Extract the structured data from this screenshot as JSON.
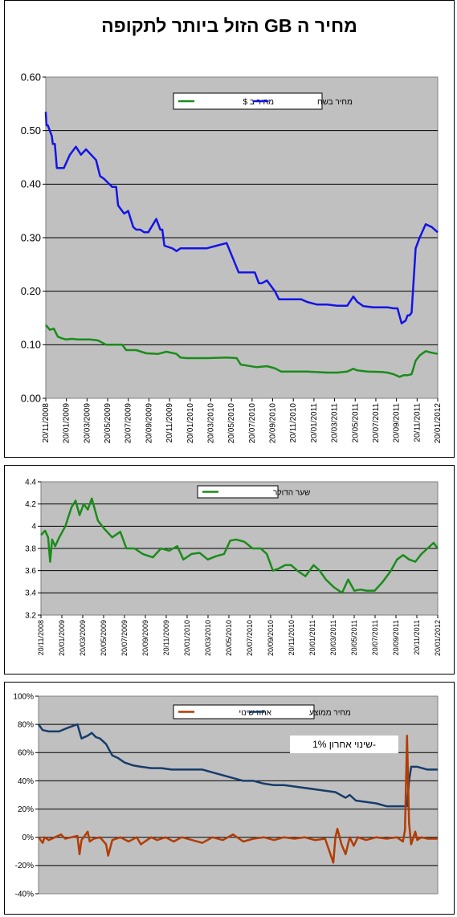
{
  "colors": {
    "plot_bg": "#c0c0c0",
    "green": "#1a8c1a",
    "blue": "#1414e6",
    "dark_blue": "#173c6b",
    "brown": "#b33c00",
    "grid": "#000000"
  },
  "chart_data": [
    {
      "type": "line",
      "title": "מחיר ה GB הזול ביותר לתקופה",
      "ylim": [
        0,
        0.6
      ],
      "y_ticks": [
        "0.00",
        "0.10",
        "0.20",
        "0.30",
        "0.40",
        "0.50",
        "0.60"
      ],
      "x_ticks": [
        "20/11/2008",
        "20/01/2009",
        "20/03/2009",
        "20/05/2009",
        "20/07/2009",
        "20/09/2009",
        "20/11/2009",
        "20/01/2010",
        "20/03/2010",
        "20/05/2010",
        "20/07/2010",
        "20/09/2010",
        "20/11/2010",
        "20/01/2011",
        "20/03/2011",
        "20/05/2011",
        "20/07/2011",
        "20/09/2011",
        "20/11/2011",
        "20/01/2012"
      ],
      "grid": true,
      "legend_position": "top-center",
      "series": [
        {
          "name": "מחיר בשח",
          "color": "blue",
          "x": [
            0,
            0.03,
            0.1,
            0.3,
            0.35,
            0.45,
            0.55,
            0.7,
            0.9,
            1.2,
            1.5,
            1.75,
            2.0,
            2.5,
            2.7,
            2.9,
            3.3,
            3.5,
            3.6,
            3.9,
            4.1,
            4.35,
            4.5,
            4.7,
            4.9,
            5.1,
            5.5,
            5.7,
            5.8,
            5.9,
            6.3,
            6.5,
            6.7,
            7.2,
            7.4,
            8.0,
            8.5,
            9.0,
            9.6,
            9.75,
            9.9,
            10.4,
            10.6,
            10.75,
            11.0,
            11.4,
            11.6,
            11.9,
            12.3,
            12.7,
            13.0,
            13.5,
            14.0,
            14.5,
            15.0,
            15.3,
            15.5,
            15.8,
            16.3,
            17.0,
            17.3,
            17.5,
            17.7,
            17.9,
            18.0,
            18.1,
            18.2,
            18.4,
            18.6,
            18.9,
            19.2,
            19.5
          ],
          "values": [
            0.535,
            0.51,
            0.51,
            0.49,
            0.475,
            0.475,
            0.43,
            0.43,
            0.43,
            0.455,
            0.47,
            0.455,
            0.465,
            0.445,
            0.415,
            0.41,
            0.395,
            0.395,
            0.36,
            0.345,
            0.35,
            0.32,
            0.315,
            0.315,
            0.31,
            0.31,
            0.335,
            0.315,
            0.315,
            0.285,
            0.28,
            0.275,
            0.28,
            0.28,
            0.28,
            0.28,
            0.285,
            0.29,
            0.235,
            0.235,
            0.235,
            0.235,
            0.215,
            0.215,
            0.22,
            0.2,
            0.185,
            0.185,
            0.185,
            0.185,
            0.18,
            0.175,
            0.175,
            0.173,
            0.173,
            0.19,
            0.18,
            0.172,
            0.17,
            0.17,
            0.168,
            0.168,
            0.14,
            0.145,
            0.155,
            0.155,
            0.16,
            0.28,
            0.3,
            0.325,
            0.32,
            0.31
          ]
        },
        {
          "name": "מחיר ב $",
          "color": "green",
          "x": [
            0,
            0.2,
            0.4,
            0.6,
            0.8,
            1.0,
            1.3,
            1.6,
            1.9,
            2.2,
            2.6,
            3.0,
            3.5,
            3.8,
            4.0,
            4.2,
            4.5,
            5.0,
            5.6,
            6.0,
            6.5,
            6.7,
            7.0,
            8.0,
            9.0,
            9.5,
            9.7,
            10.5,
            11.0,
            11.4,
            11.7,
            12.0,
            12.5,
            13.0,
            14.0,
            14.5,
            15.0,
            15.3,
            15.5,
            16.0,
            16.7,
            17.0,
            17.3,
            17.6,
            17.8,
            18.0,
            18.2,
            18.4,
            18.6,
            18.9,
            19.2,
            19.5
          ],
          "values": [
            0.137,
            0.128,
            0.13,
            0.115,
            0.112,
            0.11,
            0.111,
            0.11,
            0.11,
            0.11,
            0.108,
            0.1,
            0.1,
            0.1,
            0.09,
            0.09,
            0.09,
            0.084,
            0.083,
            0.087,
            0.083,
            0.076,
            0.075,
            0.075,
            0.076,
            0.075,
            0.063,
            0.058,
            0.06,
            0.056,
            0.05,
            0.05,
            0.05,
            0.05,
            0.048,
            0.048,
            0.05,
            0.055,
            0.052,
            0.05,
            0.049,
            0.048,
            0.045,
            0.04,
            0.043,
            0.043,
            0.045,
            0.07,
            0.08,
            0.088,
            0.085,
            0.083
          ]
        }
      ]
    },
    {
      "type": "line",
      "ylim": [
        3.2,
        4.4
      ],
      "y_ticks": [
        "3.2",
        "3.4",
        "3.6",
        "3.8",
        "4",
        "4.2",
        "4.4"
      ],
      "x_ticks": [
        "20/11/2008",
        "20/01/2009",
        "20/03/2009",
        "20/05/2009",
        "20/07/2009",
        "20/09/2009",
        "20/11/2009",
        "20/01/2010",
        "20/03/2010",
        "20/05/2010",
        "20/07/2010",
        "20/09/2010",
        "20/11/2010",
        "20/01/2011",
        "20/03/2011",
        "20/05/2011",
        "20/07/2011",
        "20/09/2011",
        "20/11/2011",
        "20/01/2012"
      ],
      "grid": true,
      "legend_position": "top-center",
      "series": [
        {
          "name": "שער הדולר",
          "color": "green",
          "x": [
            0,
            0.2,
            0.35,
            0.45,
            0.55,
            0.7,
            0.9,
            1.2,
            1.5,
            1.7,
            1.9,
            2.1,
            2.3,
            2.5,
            2.8,
            3.1,
            3.5,
            3.9,
            4.2,
            4.6,
            5.0,
            5.5,
            5.9,
            6.3,
            6.7,
            7.0,
            7.4,
            7.8,
            8.2,
            8.6,
            9.0,
            9.3,
            9.6,
            10.0,
            10.4,
            10.8,
            11.1,
            11.4,
            11.7,
            12.0,
            12.3,
            12.6,
            13.0,
            13.4,
            13.7,
            14.0,
            14.4,
            14.8,
            15.1,
            15.4,
            15.7,
            16.0,
            16.4,
            16.8,
            17.2,
            17.5,
            17.8,
            18.1,
            18.4,
            18.7,
            19.0,
            19.3,
            19.5
          ],
          "values": [
            3.92,
            3.96,
            3.9,
            3.68,
            3.88,
            3.82,
            3.9,
            4.0,
            4.17,
            4.23,
            4.1,
            4.2,
            4.15,
            4.25,
            4.05,
            3.98,
            3.9,
            3.95,
            3.8,
            3.8,
            3.75,
            3.72,
            3.8,
            3.78,
            3.82,
            3.7,
            3.75,
            3.76,
            3.7,
            3.73,
            3.75,
            3.87,
            3.88,
            3.86,
            3.8,
            3.8,
            3.75,
            3.6,
            3.62,
            3.65,
            3.65,
            3.6,
            3.55,
            3.65,
            3.6,
            3.52,
            3.45,
            3.4,
            3.52,
            3.42,
            3.43,
            3.42,
            3.42,
            3.5,
            3.6,
            3.7,
            3.74,
            3.7,
            3.68,
            3.75,
            3.8,
            3.85,
            3.8
          ]
        }
      ]
    },
    {
      "type": "line",
      "ylim": [
        -40,
        100
      ],
      "y_ticks": [
        "-40%",
        "-20%",
        "0%",
        "20%",
        "40%",
        "60%",
        "80%",
        "100%"
      ],
      "grid": true,
      "legend_position": "top-center",
      "annotation": "שינוי אחרון 1%-",
      "series": [
        {
          "name": "מחיר ממוצע",
          "color": "dark_blue",
          "x": [
            0,
            0.2,
            0.5,
            1.0,
            1.5,
            1.9,
            2.1,
            2.4,
            2.6,
            2.8,
            3.0,
            3.3,
            3.6,
            3.9,
            4.2,
            4.6,
            5.0,
            5.5,
            6.0,
            6.5,
            7.0,
            7.5,
            8.0,
            8.5,
            9.0,
            9.5,
            10.0,
            10.5,
            11.0,
            11.5,
            12.0,
            12.5,
            13.0,
            13.5,
            14.0,
            14.5,
            15.0,
            15.2,
            15.5,
            16.0,
            16.5,
            17.0,
            17.5,
            17.8,
            18.0,
            18.1,
            18.2,
            18.5,
            19.0,
            19.5
          ],
          "values": [
            80,
            76,
            75,
            75,
            78,
            80,
            70,
            72,
            74,
            71,
            70,
            66,
            58,
            56,
            53,
            51,
            50,
            49,
            49,
            48,
            48,
            48,
            48,
            46,
            44,
            42,
            40,
            40,
            38,
            37,
            37,
            36,
            35,
            34,
            33,
            32,
            28,
            30,
            26,
            25,
            24,
            22,
            22,
            22,
            22,
            40,
            50,
            50,
            48,
            48
          ]
        },
        {
          "name": "אחוז שינוי",
          "color": "brown",
          "x": [
            0,
            0.2,
            0.3,
            0.5,
            0.8,
            1.1,
            1.3,
            1.6,
            1.9,
            2.0,
            2.1,
            2.2,
            2.4,
            2.5,
            2.7,
            3.0,
            3.3,
            3.4,
            3.6,
            4.0,
            4.4,
            4.8,
            5.0,
            5.5,
            5.8,
            6.2,
            6.6,
            7.0,
            7.5,
            8.0,
            8.5,
            9.0,
            9.5,
            10.0,
            10.5,
            11.0,
            11.5,
            12.0,
            12.5,
            13.0,
            13.5,
            14.0,
            14.4,
            14.5,
            14.6,
            14.8,
            15.0,
            15.2,
            15.4,
            15.6,
            16.0,
            16.5,
            17.0,
            17.5,
            17.8,
            17.9,
            18.0,
            18.1,
            18.2,
            18.4,
            18.5,
            18.7,
            19.0,
            19.5
          ],
          "values": [
            0,
            -4,
            0,
            -2,
            0,
            2,
            -1,
            0,
            1,
            -12,
            -2,
            0,
            4,
            -3,
            -1,
            0,
            -5,
            -13,
            -2,
            0,
            -3,
            0,
            -5,
            0,
            -2,
            0,
            -3,
            0,
            -2,
            -4,
            0,
            -2,
            2,
            -3,
            -1,
            0,
            -2,
            0,
            -1,
            0,
            -2,
            -1,
            -18,
            0,
            6,
            -5,
            -12,
            0,
            -6,
            0,
            -2,
            0,
            -1,
            0,
            -3,
            5,
            72,
            10,
            -5,
            4,
            -2,
            0,
            -1,
            -1
          ]
        }
      ]
    }
  ]
}
